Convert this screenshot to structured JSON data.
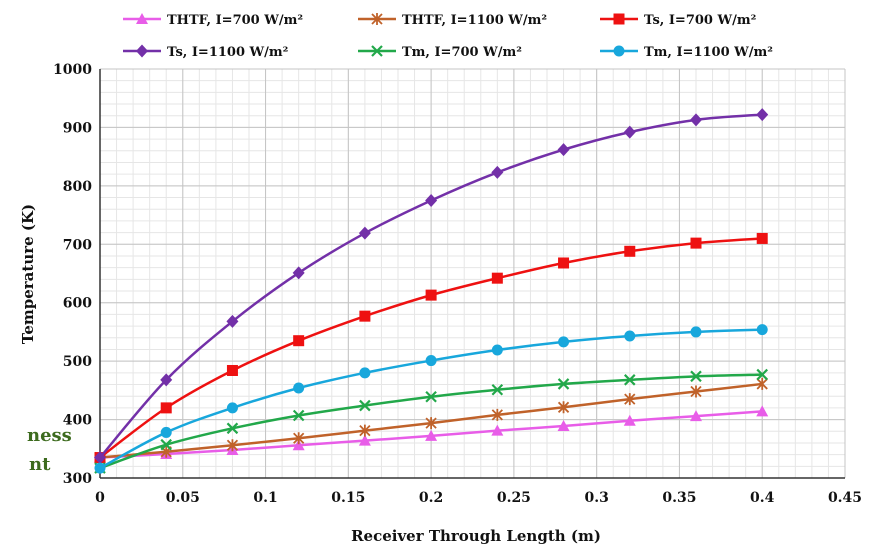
{
  "stray_text": [
    "ness",
    "nt"
  ],
  "chart_data": {
    "type": "line",
    "title": "",
    "xlabel": "Receiver Through Length (m)",
    "ylabel": "Temperature (K)",
    "xlim": [
      0,
      0.45
    ],
    "ylim": [
      300,
      1000
    ],
    "x_ticks": [
      0,
      0.05,
      0.1,
      0.15,
      0.2,
      0.25,
      0.3,
      0.35,
      0.4,
      0.45
    ],
    "x_tick_labels": [
      "0",
      "0.05",
      "0.1",
      "0.15",
      "0.2",
      "0.25",
      "0.3",
      "0.35",
      "0.4",
      "0.45"
    ],
    "y_ticks": [
      300,
      400,
      500,
      600,
      700,
      800,
      900,
      1000
    ],
    "y_tick_labels": [
      "300",
      "400",
      "500",
      "600",
      "700",
      "800",
      "900",
      "1000"
    ],
    "grid": true,
    "legend_placement": "top",
    "x": [
      0,
      0.04,
      0.08,
      0.12,
      0.16,
      0.2,
      0.24,
      0.28,
      0.32,
      0.36,
      0.4
    ],
    "series": [
      {
        "name": "THTF, I=700 W/m²",
        "color": "#e85de8",
        "marker": "triangle",
        "values": [
          335,
          341,
          348,
          356,
          364,
          372,
          381,
          389,
          398,
          406,
          414
        ]
      },
      {
        "name": "THTF, I=1100 W/m²",
        "color": "#c0622a",
        "marker": "star",
        "values": [
          335,
          345,
          356,
          368,
          381,
          394,
          408,
          421,
          435,
          448,
          461
        ]
      },
      {
        "name": "Ts, I=700 W/m²",
        "color": "#ee1111",
        "marker": "square",
        "values": [
          335,
          420,
          484,
          535,
          577,
          613,
          642,
          668,
          688,
          702,
          710
        ]
      },
      {
        "name": "Ts, I=1100 W/m²",
        "color": "#7330a8",
        "marker": "diamond",
        "values": [
          335,
          468,
          568,
          651,
          719,
          775,
          823,
          862,
          892,
          913,
          922
        ]
      },
      {
        "name": "Tm, I=700 W/m²",
        "color": "#22a84a",
        "marker": "x",
        "values": [
          317,
          357,
          385,
          407,
          424,
          439,
          451,
          461,
          468,
          474,
          477
        ]
      },
      {
        "name": "Tm, I=1100 W/m²",
        "color": "#18a7dc",
        "marker": "circle",
        "values": [
          317,
          378,
          420,
          454,
          480,
          501,
          519,
          533,
          543,
          550,
          554
        ]
      }
    ]
  }
}
